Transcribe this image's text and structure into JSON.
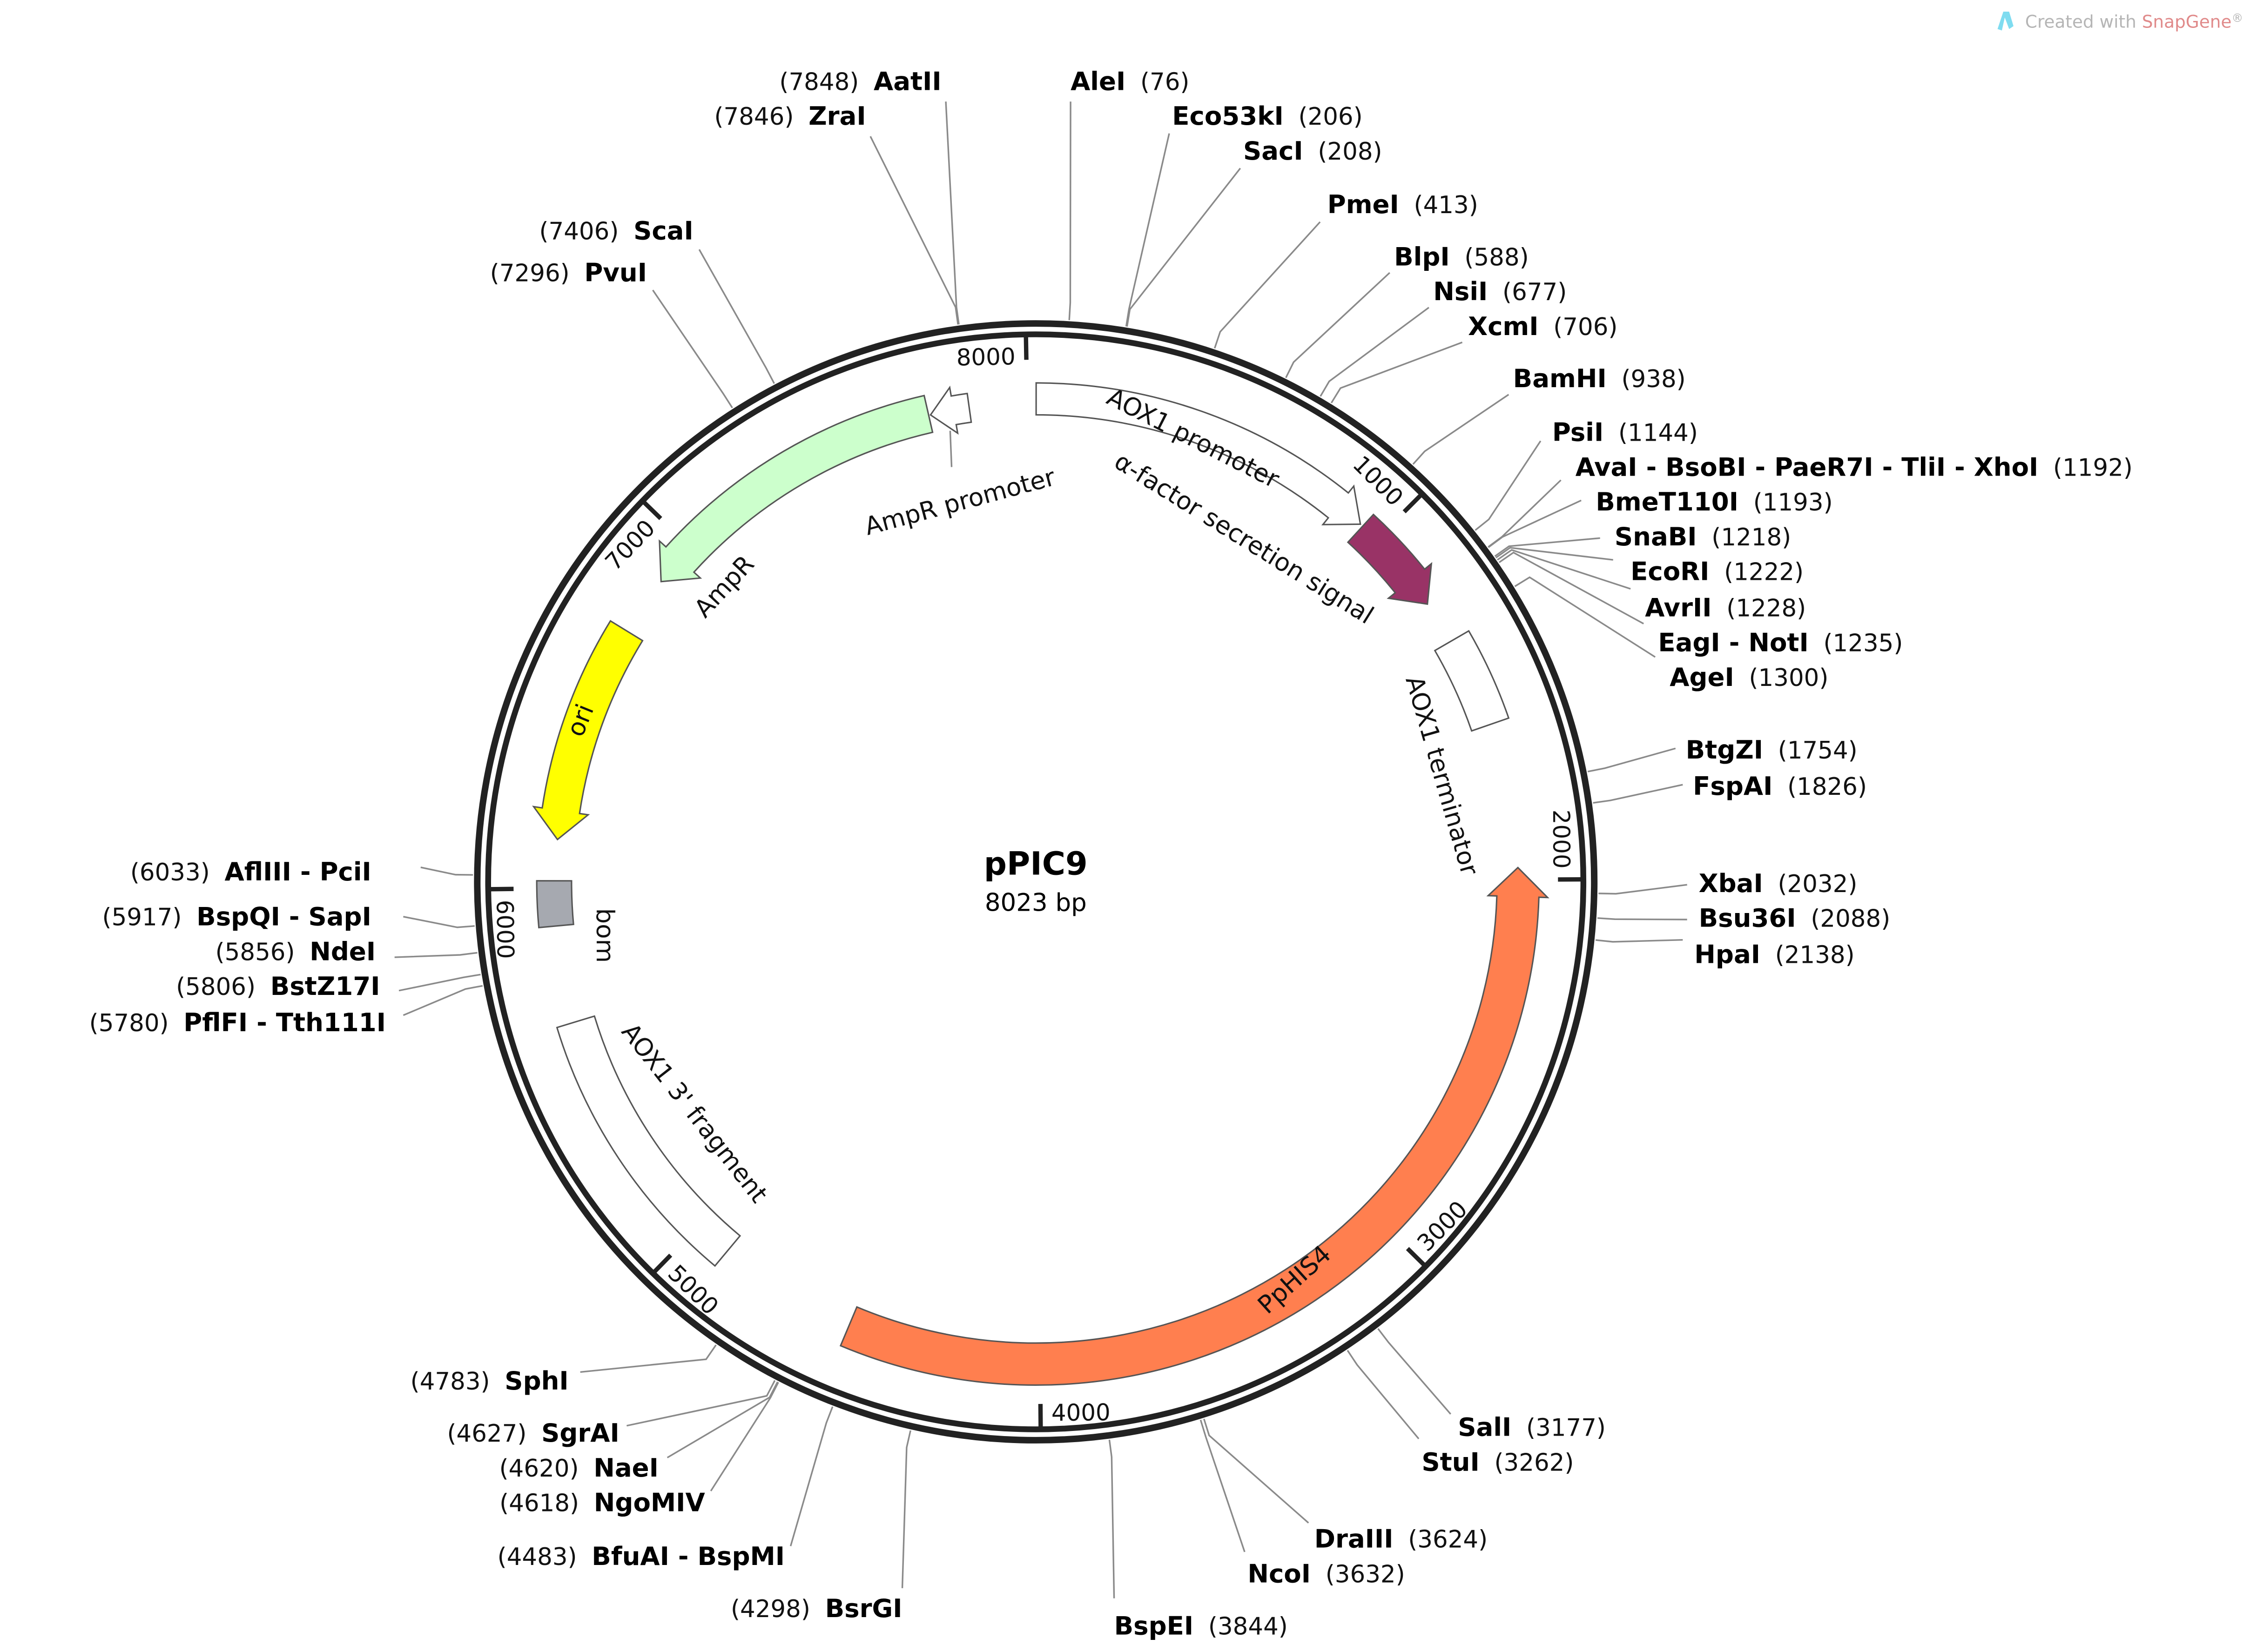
{
  "watermark": {
    "prefix": "Created with ",
    "brand": "SnapGene",
    "suffix": "®",
    "brand_color": "#e08a8a",
    "icon": "snapgene-logo-icon"
  },
  "plasmid": {
    "name": "pPIC9",
    "length_label": "8023 bp",
    "length_bp": 8023
  },
  "ticks": [
    "1000",
    "2000",
    "3000",
    "4000",
    "5000",
    "6000",
    "7000",
    "8000"
  ],
  "features": [
    {
      "label": "AOX1 promoter",
      "start": 1,
      "end": 941,
      "direction": "forward",
      "color": "#ffffff"
    },
    {
      "label": "α-factor secretion signal",
      "start": 949,
      "end": 1218,
      "direction": "forward",
      "color": "#993366"
    },
    {
      "label": "AOX1 terminator",
      "start": 1335,
      "end": 1580,
      "direction": "none",
      "color": "#ffffff"
    },
    {
      "label": "PpHIS4",
      "start": 1968,
      "end": 4520,
      "direction": "reverse",
      "color": "#ff7f4f"
    },
    {
      "label": "AOX1 3' fragment",
      "start": 4900,
      "end": 5640,
      "direction": "none",
      "color": "#ffffff"
    },
    {
      "label": "bom",
      "start": 5900,
      "end": 6020,
      "direction": "none",
      "color": "#a6a9b0"
    },
    {
      "label": "ori",
      "start": 6130,
      "end": 6720,
      "direction": "reverse",
      "color": "#ffff00"
    },
    {
      "label": "AmpR",
      "start": 6880,
      "end": 7735,
      "direction": "reverse",
      "color": "#ccffcc"
    },
    {
      "label": "AmpR promoter",
      "start": 7740,
      "end": 7845,
      "direction": "reverse",
      "color": "#ffffff"
    }
  ],
  "enzymes": [
    {
      "name": "AleI",
      "pos": 76
    },
    {
      "name": "Eco53kI",
      "pos": 206
    },
    {
      "name": "SacI",
      "pos": 208
    },
    {
      "name": "PmeI",
      "pos": 413
    },
    {
      "name": "BlpI",
      "pos": 588
    },
    {
      "name": "NsiI",
      "pos": 677
    },
    {
      "name": "XcmI",
      "pos": 706
    },
    {
      "name": "BamHI",
      "pos": 938
    },
    {
      "name": "PsiI",
      "pos": 1144
    },
    {
      "name": "AvaI - BsoBI - PaeR7I - TliI - XhoI",
      "pos": 1192
    },
    {
      "name": "BmeT110I",
      "pos": 1193
    },
    {
      "name": "SnaBI",
      "pos": 1218
    },
    {
      "name": "EcoRI",
      "pos": 1222
    },
    {
      "name": "AvrII",
      "pos": 1228
    },
    {
      "name": "EagI - NotI",
      "pos": 1235
    },
    {
      "name": "AgeI",
      "pos": 1300
    },
    {
      "name": "BtgZI",
      "pos": 1754
    },
    {
      "name": "FspAI",
      "pos": 1826
    },
    {
      "name": "XbaI",
      "pos": 2032
    },
    {
      "name": "Bsu36I",
      "pos": 2088
    },
    {
      "name": "HpaI",
      "pos": 2138
    },
    {
      "name": "SalI",
      "pos": 3177
    },
    {
      "name": "StuI",
      "pos": 3262
    },
    {
      "name": "DraIII",
      "pos": 3624
    },
    {
      "name": "NcoI",
      "pos": 3632
    },
    {
      "name": "BspEI",
      "pos": 3844
    },
    {
      "name": "BsrGI",
      "pos": 4298
    },
    {
      "name": "BfuAI - BspMI",
      "pos": 4483
    },
    {
      "name": "NgoMIV",
      "pos": 4618
    },
    {
      "name": "NaeI",
      "pos": 4620
    },
    {
      "name": "SgrAI",
      "pos": 4627
    },
    {
      "name": "SphI",
      "pos": 4783
    },
    {
      "name": "PflFI - Tth111I",
      "pos": 5780
    },
    {
      "name": "BstZ17I",
      "pos": 5806
    },
    {
      "name": "NdeI",
      "pos": 5856
    },
    {
      "name": "BspQI - SapI",
      "pos": 5917
    },
    {
      "name": "AflIII - PciI",
      "pos": 6033
    },
    {
      "name": "PvuI",
      "pos": 7296
    },
    {
      "name": "ScaI",
      "pos": 7406
    },
    {
      "name": "ZraI",
      "pos": 7846
    },
    {
      "name": "AatII",
      "pos": 7848
    }
  ]
}
